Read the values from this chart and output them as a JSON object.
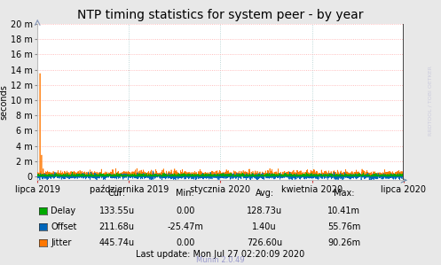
{
  "title": "NTP timing statistics for system peer - by year",
  "ylabel": "seconds",
  "background_color": "#e8e8e8",
  "plot_bg_color": "#ffffff",
  "grid_color_h": "#ffaaaa",
  "grid_color_v": "#aacccc",
  "x_labels": [
    "lipca 2019",
    "października 2019",
    "stycznia 2020",
    "kwietnia 2020",
    "lipca 2020"
  ],
  "y_max": 0.02,
  "y_min": -0.0005,
  "delay_color": "#00aa00",
  "offset_color": "#0066bb",
  "jitter_color": "#ff7700",
  "legend_colors": [
    "#00aa00",
    "#0066bb",
    "#ff7700"
  ],
  "stats": {
    "headers": [
      "Cur:",
      "Min:",
      "Avg:",
      "Max:"
    ],
    "Delay": [
      "133.55u",
      "0.00",
      "128.73u",
      "10.41m"
    ],
    "Offset": [
      "211.68u",
      "-25.47m",
      "1.40u",
      "55.76m"
    ],
    "Jitter": [
      "445.74u",
      "0.00",
      "726.60u",
      "90.26m"
    ]
  },
  "last_update": "Last update: Mon Jul 27 02:20:09 2020",
  "munin_version": "Munin 2.0.49",
  "watermark": "RRDTOOL / TOBI OETKER",
  "title_fontsize": 10,
  "axis_fontsize": 7,
  "stats_fontsize": 7
}
